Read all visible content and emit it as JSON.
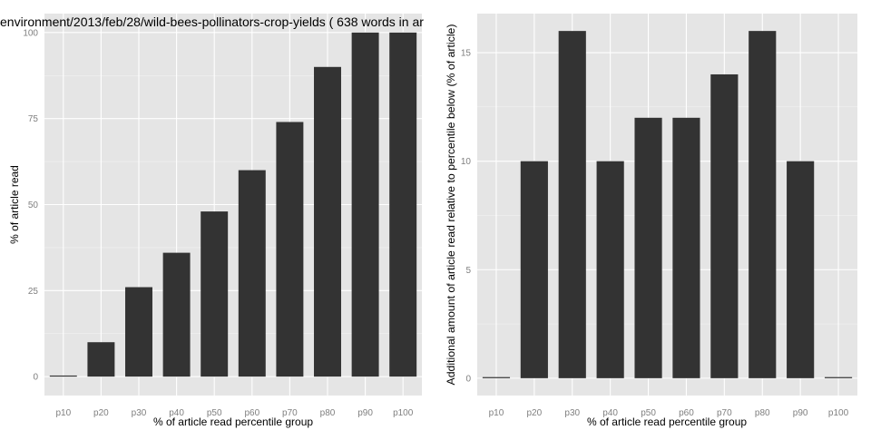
{
  "chart_data": [
    {
      "type": "bar",
      "title": "environment/2013/feb/28/wild-bees-pollinators-crop-yields ( 638 words in ar",
      "xlabel": "% of article read percentile group",
      "ylabel": "% of article read",
      "categories": [
        "p10",
        "p20",
        "p30",
        "p40",
        "p50",
        "p60",
        "p70",
        "p80",
        "p90",
        "p100"
      ],
      "values": [
        0,
        10,
        26,
        36,
        48,
        60,
        74,
        90,
        100,
        100
      ],
      "ylim": [
        -5.5,
        105.5
      ],
      "yticks": [
        0,
        25,
        50,
        75,
        100
      ],
      "grid": true,
      "legend": "none"
    },
    {
      "type": "bar",
      "title": "",
      "xlabel": "% of article read percentile group",
      "ylabel": "Additional amount of article read relative to percentile below (% of article)",
      "categories": [
        "p10",
        "p20",
        "p30",
        "p40",
        "p50",
        "p60",
        "p70",
        "p80",
        "p90",
        "p100"
      ],
      "values": [
        0,
        10,
        16,
        10,
        12,
        12,
        14,
        16,
        10,
        0
      ],
      "ylim": [
        -0.8,
        16.8
      ],
      "yticks": [
        0,
        5,
        10,
        15
      ],
      "grid": true,
      "legend": "none"
    }
  ]
}
